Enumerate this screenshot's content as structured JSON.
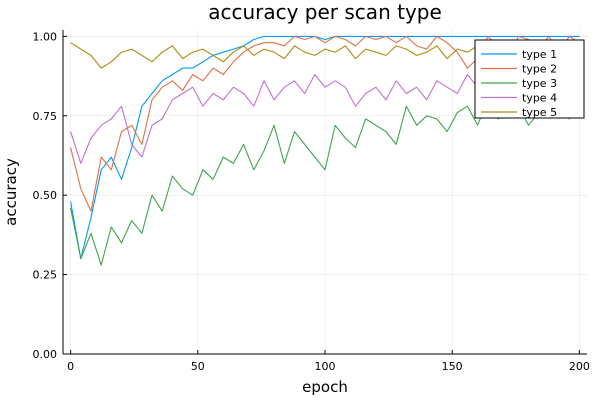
{
  "chart_data": {
    "type": "line",
    "title": "accuracy per scan type",
    "xlabel": "epoch",
    "ylabel": "accuracy",
    "xlim": [
      -3,
      203
    ],
    "ylim": [
      0.0,
      1.02
    ],
    "xticks": [
      0,
      50,
      100,
      150,
      200
    ],
    "yticks": [
      0.0,
      0.25,
      0.5,
      0.75,
      1.0
    ],
    "xtick_labels": [
      "0",
      "50",
      "100",
      "150",
      "200"
    ],
    "ytick_labels": [
      "0.00",
      "0.25",
      "0.50",
      "0.75",
      "1.00"
    ],
    "grid": true,
    "legend_position": "top-right",
    "x": [
      0,
      4,
      8,
      12,
      16,
      20,
      24,
      28,
      32,
      36,
      40,
      44,
      48,
      52,
      56,
      60,
      64,
      68,
      72,
      76,
      80,
      84,
      88,
      92,
      96,
      100,
      104,
      108,
      112,
      116,
      120,
      124,
      128,
      132,
      136,
      140,
      144,
      148,
      152,
      156,
      160,
      164,
      168,
      172,
      176,
      180,
      184,
      188,
      192,
      196,
      200
    ],
    "series": [
      {
        "name": "type 1",
        "color": "#009AFA",
        "values": [
          0.48,
          0.3,
          0.43,
          0.58,
          0.62,
          0.55,
          0.65,
          0.78,
          0.82,
          0.86,
          0.88,
          0.9,
          0.9,
          0.92,
          0.94,
          0.95,
          0.96,
          0.97,
          0.99,
          1.0,
          1.0,
          1.0,
          1.0,
          1.0,
          1.0,
          0.99,
          1.0,
          1.0,
          1.0,
          1.0,
          1.0,
          1.0,
          1.0,
          1.0,
          1.0,
          1.0,
          1.0,
          1.0,
          1.0,
          1.0,
          1.0,
          1.0,
          1.0,
          1.0,
          1.0,
          1.0,
          1.0,
          1.0,
          1.0,
          1.0,
          1.0
        ]
      },
      {
        "name": "type 2",
        "color": "#E36F47",
        "values": [
          0.65,
          0.52,
          0.45,
          0.62,
          0.58,
          0.7,
          0.72,
          0.66,
          0.8,
          0.84,
          0.86,
          0.83,
          0.88,
          0.86,
          0.9,
          0.88,
          0.92,
          0.95,
          0.97,
          0.98,
          0.98,
          0.97,
          1.0,
          0.99,
          1.0,
          0.98,
          1.0,
          0.99,
          0.97,
          1.0,
          0.99,
          1.0,
          0.98,
          1.0,
          0.97,
          0.96,
          1.0,
          0.98,
          0.95,
          0.9,
          0.93,
          1.0,
          0.97,
          0.92,
          1.0,
          0.99,
          0.96,
          1.0,
          0.95,
          1.0,
          0.98
        ]
      },
      {
        "name": "type 3",
        "color": "#3EA44E",
        "values": [
          0.46,
          0.3,
          0.38,
          0.28,
          0.4,
          0.35,
          0.42,
          0.38,
          0.5,
          0.45,
          0.56,
          0.52,
          0.5,
          0.58,
          0.55,
          0.62,
          0.6,
          0.66,
          0.58,
          0.64,
          0.72,
          0.6,
          0.7,
          0.66,
          0.62,
          0.58,
          0.72,
          0.68,
          0.65,
          0.74,
          0.72,
          0.7,
          0.66,
          0.78,
          0.72,
          0.75,
          0.74,
          0.7,
          0.76,
          0.78,
          0.72,
          0.8,
          0.74,
          0.76,
          0.78,
          0.72,
          0.76,
          0.82,
          0.78,
          0.74,
          0.85
        ]
      },
      {
        "name": "type 4",
        "color": "#C271D2",
        "values": [
          0.7,
          0.6,
          0.68,
          0.72,
          0.74,
          0.78,
          0.66,
          0.62,
          0.72,
          0.74,
          0.8,
          0.82,
          0.84,
          0.78,
          0.82,
          0.8,
          0.84,
          0.82,
          0.78,
          0.86,
          0.8,
          0.84,
          0.86,
          0.82,
          0.88,
          0.84,
          0.86,
          0.84,
          0.78,
          0.82,
          0.84,
          0.8,
          0.86,
          0.82,
          0.84,
          0.8,
          0.86,
          0.84,
          0.82,
          0.88,
          0.84,
          0.86,
          0.82,
          0.9,
          0.84,
          0.86,
          0.82,
          0.88,
          0.84,
          0.86,
          0.82
        ]
      },
      {
        "name": "type 5",
        "color": "#AC8E18",
        "values": [
          0.98,
          0.96,
          0.94,
          0.9,
          0.92,
          0.95,
          0.96,
          0.94,
          0.92,
          0.95,
          0.97,
          0.93,
          0.95,
          0.96,
          0.94,
          0.92,
          0.95,
          0.97,
          0.94,
          0.96,
          0.95,
          0.93,
          0.97,
          0.95,
          0.94,
          0.96,
          0.95,
          0.97,
          0.93,
          0.96,
          0.95,
          0.94,
          0.97,
          0.96,
          0.94,
          0.95,
          0.97,
          0.93,
          0.96,
          0.95,
          0.97,
          0.94,
          0.96,
          0.95,
          0.93,
          0.97,
          0.95,
          0.96,
          0.94,
          0.97,
          0.95
        ]
      }
    ]
  }
}
